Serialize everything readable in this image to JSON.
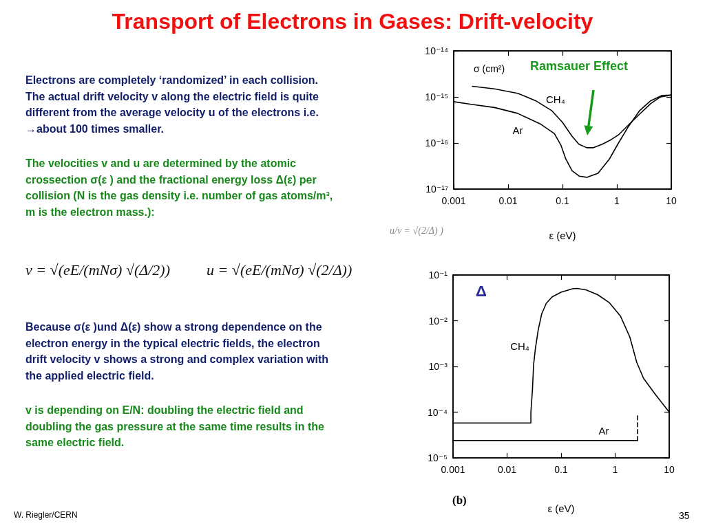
{
  "chart_data": [
    {
      "type": "other",
      "title": "Transport of Electrons in Gases: Drift-velocity",
      "annotations": [
        "Electrons are completely ‘randomized’ in each collision.\nThe actual drift velocity v along the electric field is quite\ndifferent from the average velocity u of the electrons i.e.\n→about 100 times smaller.",
        "The velocities v and u are determined by the atomic\ncrossection σ(ε ) and the fractional energy loss Δ(ε) per\ncollision (N is the gas density i.e. number of gas atoms/m³,\nm is the electron mass.):",
        "v = √(eE/(mNσ) √(Δ/2))",
        "u = √(eE/(mNσ) √(2/Δ))",
        "u/v = √(2/Δ) )",
        "Because σ(ε )und Δ(ε) show a strong dependence on the\nelectron energy in the typical electric fields, the electron\ndrift velocity v shows a strong and complex variation with\nthe applied electric field.",
        "v is depending on E/N: doubling the electric field and\ndoubling the gas pressure at the same time results in the\nsame electric field.",
        "W. Riegler/CERN",
        "35"
      ]
    },
    {
      "type": "line",
      "xlabel": "ε (eV)",
      "ylabel": "σ (cm²)",
      "annotations": [
        "Ramsauer Effect"
      ],
      "log": "xy",
      "xlim": [
        0.001,
        10
      ],
      "ylim": [
        1e-17,
        1e-14
      ],
      "xticks": [
        0.001,
        0.01,
        0.1,
        1,
        10
      ],
      "yticks": [
        {
          "value": 1e-17,
          "label": "10⁻¹⁷"
        },
        {
          "value": 1e-16,
          "label": "10⁻¹⁶"
        },
        {
          "value": 1e-15,
          "label": "10⁻¹⁵"
        },
        {
          "value": 1e-14,
          "label": "10⁻¹⁴"
        }
      ],
      "marker": "none",
      "line_style": "solid",
      "series": [
        {
          "name": "CH₄",
          "color": "#000000",
          "x": [
            0.0022,
            0.0056,
            0.015,
            0.032,
            0.064,
            0.1,
            0.15,
            0.2,
            0.28,
            0.37,
            0.54,
            0.8,
            1.07,
            1.6,
            2.6,
            4.2,
            6.2,
            10
          ],
          "values": [
            1.7e-15,
            1.5e-15,
            1.2e-15,
            8.3e-16,
            5e-16,
            2.8e-16,
            1.4e-16,
            9.4e-17,
            7.9e-17,
            7.9e-17,
            9.4e-17,
            1.2e-16,
            1.5e-16,
            2.4e-16,
            4.2e-16,
            7.2e-16,
            9.9e-16,
            1.1e-15
          ]
        },
        {
          "name": "Ar",
          "color": "#000000",
          "x": [
            0.001,
            0.0021,
            0.0056,
            0.015,
            0.039,
            0.071,
            0.094,
            0.115,
            0.15,
            0.205,
            0.28,
            0.45,
            0.73,
            1.07,
            1.6,
            2.6,
            4.2,
            6.8,
            10
          ],
          "values": [
            7.9e-16,
            6.9e-16,
            5.9e-16,
            4.4e-16,
            2.6e-16,
            1.6e-16,
            8.9e-17,
            4.5e-17,
            2.5e-17,
            1.9e-17,
            1.8e-17,
            2.2e-17,
            4.5e-17,
            1e-16,
            2.2e-16,
            5e-16,
            8.3e-16,
            1.08e-15,
            1.1e-15
          ]
        }
      ]
    },
    {
      "type": "line",
      "xlabel": "ε (eV)",
      "ylabel": "Δ",
      "annotations": [
        "(b)"
      ],
      "log": "xy",
      "xlim": [
        0.001,
        10
      ],
      "ylim": [
        1e-05,
        0.1
      ],
      "xticks": [
        0.001,
        0.01,
        0.1,
        1,
        10
      ],
      "yticks": [
        {
          "value": 1e-05,
          "label": "10⁻⁵"
        },
        {
          "value": 0.0001,
          "label": "10⁻⁴"
        },
        {
          "value": 0.001,
          "label": "10⁻³"
        },
        {
          "value": 0.01,
          "label": "10⁻²"
        },
        {
          "value": 0.1,
          "label": "10⁻¹"
        }
      ],
      "marker": "none",
      "line_style": "solid",
      "series": [
        {
          "name": "CH₄",
          "color": "#000000",
          "x": [
            0.001,
            0.0276,
            0.0276,
            0.0295,
            0.031,
            0.0335,
            0.0377,
            0.0437,
            0.0531,
            0.0678,
            0.1,
            0.163,
            0.198,
            0.292,
            0.477,
            0.776,
            1.26,
            1.87,
            2.5,
            3.35,
            5.46,
            10
          ],
          "values": [
            5.8e-05,
            5.8e-05,
            0.0001,
            0.00031,
            0.0011,
            0.0025,
            0.0063,
            0.014,
            0.024,
            0.033,
            0.042,
            0.05,
            0.051,
            0.047,
            0.037,
            0.025,
            0.0125,
            0.0044,
            0.00124,
            0.00055,
            0.00025,
            0.0001
          ]
        },
        {
          "name": "Ar",
          "color": "#000000",
          "x": [
            0.001,
            2.6
          ],
          "values": [
            2.4e-05,
            2.4e-05
          ]
        },
        {
          "color": "#000000",
          "x": [
            2.6,
            2.6
          ],
          "values": [
            2.4e-05,
            8.3e-05
          ],
          "line_style": "dashed"
        }
      ]
    }
  ]
}
